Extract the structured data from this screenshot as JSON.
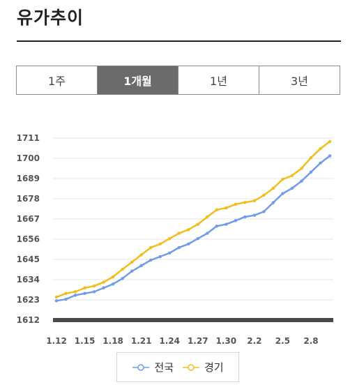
{
  "header": {
    "title": "유가추이"
  },
  "tabs": [
    {
      "label": "1주",
      "active": false
    },
    {
      "label": "1개월",
      "active": true
    },
    {
      "label": "1년",
      "active": false
    },
    {
      "label": "3년",
      "active": false
    }
  ],
  "chart_data": {
    "type": "line",
    "title": "",
    "xlabel": "",
    "ylabel": "",
    "ylim": [
      1612,
      1711
    ],
    "yticks": [
      "1711",
      "1700",
      "1689",
      "1678",
      "1667",
      "1656",
      "1645",
      "1634",
      "1623",
      "1612"
    ],
    "xticks": [
      "1.12",
      "1.15",
      "1.18",
      "1.21",
      "1.24",
      "1.27",
      "1.30",
      "2.2",
      "2.5",
      "2.8"
    ],
    "grid": "horizontal",
    "legend_position": "bottom",
    "series": [
      {
        "name": "전국",
        "color": "#6f9be8",
        "values": [
          1622.5,
          1623.3,
          1625.5,
          1626.5,
          1627.4,
          1629.5,
          1631.6,
          1634.6,
          1638.6,
          1641.6,
          1644.6,
          1646.5,
          1648.5,
          1651.4,
          1653.4,
          1656.3,
          1659.2,
          1663.1,
          1664.1,
          1666.1,
          1668.1,
          1669.0,
          1671.0,
          1675.9,
          1680.8,
          1683.7,
          1687.6,
          1692.5,
          1697.4,
          1701.3
        ]
      },
      {
        "name": "경기",
        "color": "#f2bd1d",
        "values": [
          1624.5,
          1626.5,
          1627.4,
          1629.5,
          1630.5,
          1632.6,
          1635.5,
          1639.6,
          1643.5,
          1647.5,
          1651.4,
          1653.4,
          1656.3,
          1659.2,
          1661.2,
          1664.1,
          1668.1,
          1672.0,
          1673.0,
          1675.0,
          1676.0,
          1676.9,
          1679.9,
          1683.7,
          1688.6,
          1690.6,
          1694.5,
          1700.3,
          1705.2,
          1709.1
        ]
      }
    ]
  },
  "legend": {
    "items": [
      "전국",
      "경기"
    ]
  }
}
